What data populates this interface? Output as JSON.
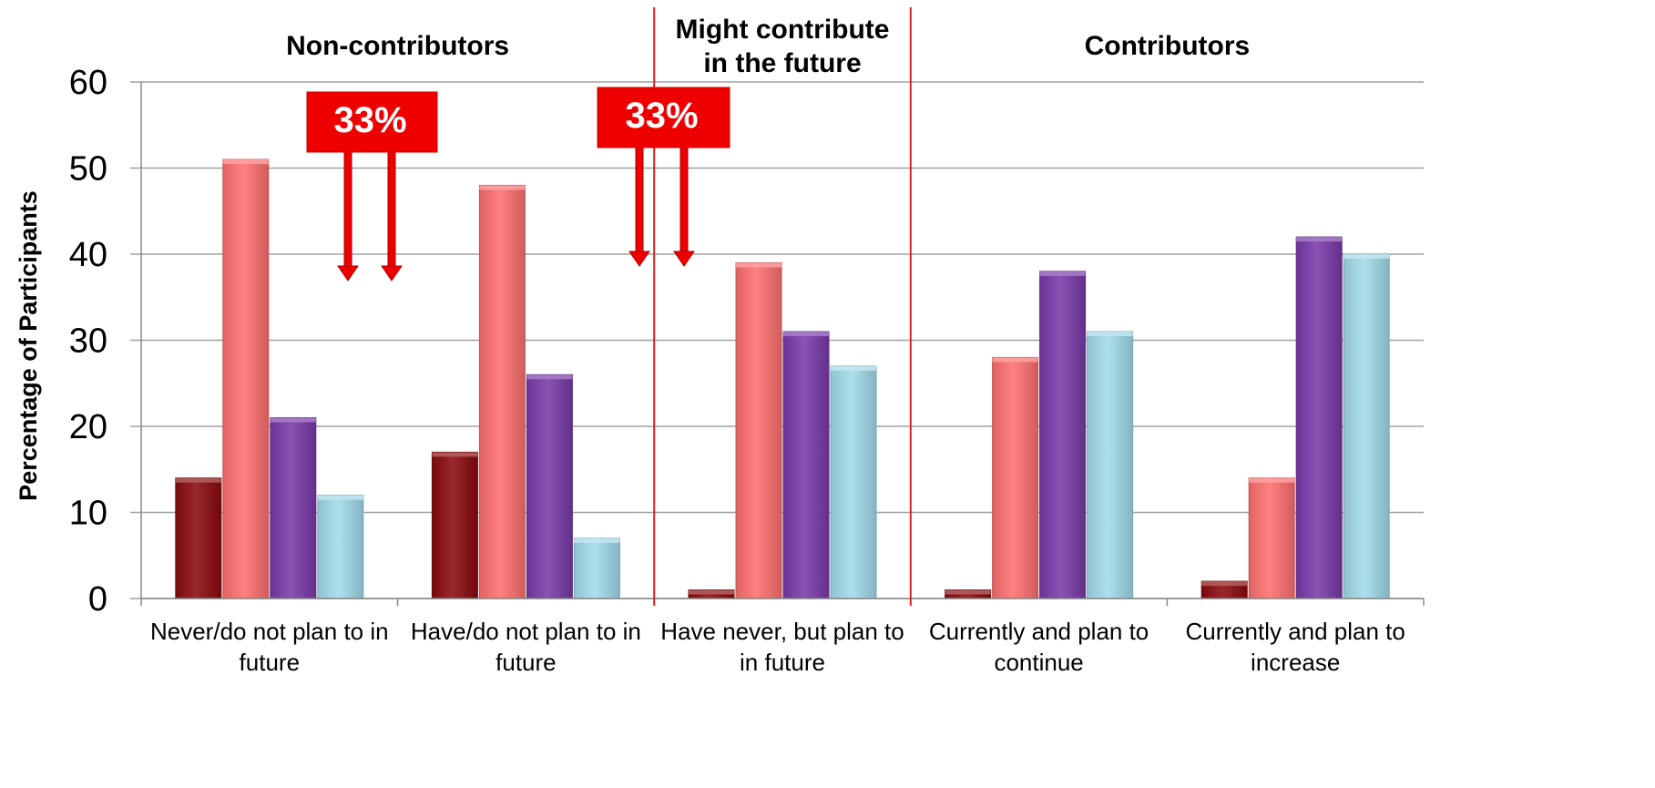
{
  "chart_data": {
    "type": "bar",
    "title": "",
    "xlabel": "",
    "ylabel": "Percentage of Participants",
    "ylim": [
      0,
      60
    ],
    "yticks": [
      0,
      10,
      20,
      30,
      40,
      50,
      60
    ],
    "grid": true,
    "categories": [
      [
        "Never/do not plan to in",
        "future"
      ],
      [
        "Have/do not plan to in",
        "future"
      ],
      [
        "Have never, but plan to",
        "in future"
      ],
      [
        "Currently and plan to",
        "continue"
      ],
      [
        "Currently and plan to",
        "increase"
      ]
    ],
    "series": [
      {
        "color": "#8B0A0E",
        "values": [
          14,
          17,
          1,
          1,
          2
        ]
      },
      {
        "color": "#FF7070",
        "values": [
          51,
          48,
          39,
          28,
          14
        ]
      },
      {
        "color": "#7A3AAA",
        "values": [
          21,
          26,
          31,
          38,
          42
        ]
      },
      {
        "color": "#A2DCEA",
        "values": [
          12,
          7,
          27,
          31,
          40
        ]
      }
    ],
    "groups": [
      {
        "label_lines": [
          "Non-contributors"
        ]
      },
      {
        "label_lines": [
          "Might contribute",
          "in the future"
        ]
      },
      {
        "label_lines": [
          "Contributors"
        ]
      }
    ],
    "annotations": [
      {
        "text": "33%",
        "color": "#EE0000"
      },
      {
        "text": "33%",
        "color": "#EE0000"
      }
    ],
    "separator_color": "#E02020",
    "grid_color": "#A0A0A0"
  }
}
